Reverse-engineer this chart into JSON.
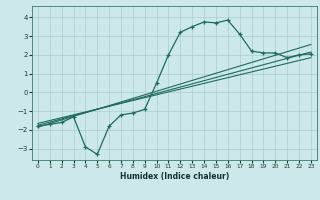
{
  "xlabel": "Humidex (Indice chaleur)",
  "bg_color": "#cce8ea",
  "grid_color": "#aacccc",
  "line_color": "#1e6b5e",
  "xlim": [
    -0.5,
    23.5
  ],
  "ylim": [
    -3.6,
    4.6
  ],
  "xticks": [
    0,
    1,
    2,
    3,
    4,
    5,
    6,
    7,
    8,
    9,
    10,
    11,
    12,
    13,
    14,
    15,
    16,
    17,
    18,
    19,
    20,
    21,
    22,
    23
  ],
  "yticks": [
    -3,
    -2,
    -1,
    0,
    1,
    2,
    3,
    4
  ],
  "main_x": [
    0,
    1,
    2,
    3,
    4,
    5,
    6,
    7,
    8,
    9,
    10,
    11,
    12,
    13,
    14,
    15,
    16,
    17,
    18,
    19,
    20,
    21,
    22,
    23
  ],
  "main_y": [
    -1.8,
    -1.7,
    -1.6,
    -1.3,
    -2.9,
    -3.3,
    -1.8,
    -1.2,
    -1.1,
    -0.9,
    0.5,
    2.0,
    3.2,
    3.5,
    3.75,
    3.7,
    3.85,
    3.1,
    2.2,
    2.1,
    2.1,
    1.85,
    2.0,
    2.05
  ],
  "line1_x": [
    0,
    23
  ],
  "line1_y": [
    -1.85,
    2.55
  ],
  "line2_x": [
    0,
    23
  ],
  "line2_y": [
    -1.75,
    2.15
  ],
  "line3_x": [
    0,
    23
  ],
  "line3_y": [
    -1.65,
    1.85
  ]
}
